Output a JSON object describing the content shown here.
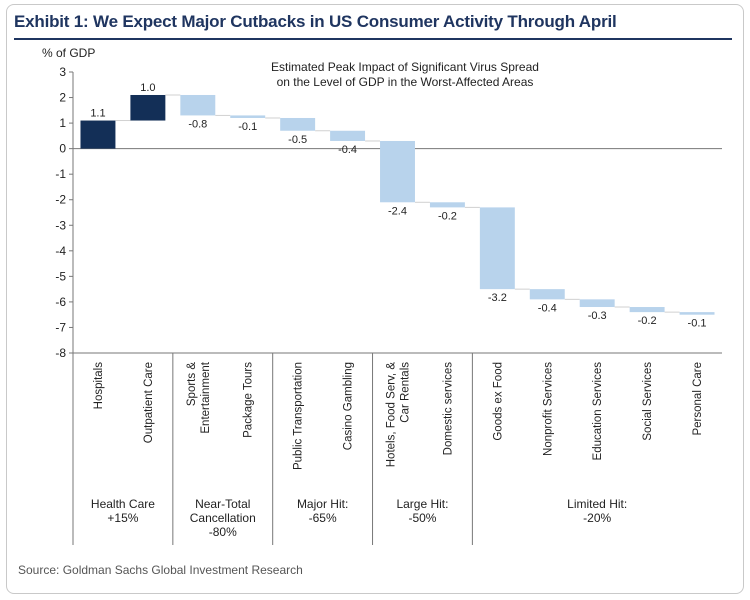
{
  "title": "Exhibit 1: We Expect Major Cutbacks in US Consumer Activity Through April",
  "source": "Source: Goldman Sachs Global Investment Research",
  "colors": {
    "health": "#132f57",
    "other": "#b8d3ec",
    "axis": "#777777",
    "title": "#1f3560"
  },
  "chart_data": {
    "type": "bar",
    "subtype": "waterfall",
    "title": "Estimated Peak Impact of Significant Virus Spread on the Level of GDP in the Worst-Affected Areas",
    "title_lines": [
      "Estimated Peak Impact of Significant Virus Spread",
      "on the Level of GDP in the Worst-Affected Areas"
    ],
    "ylabel": "% of GDP",
    "ylim": [
      -8,
      3
    ],
    "yticks": [
      3,
      2,
      1,
      0,
      -1,
      -2,
      -3,
      -4,
      -5,
      -6,
      -7,
      -8
    ],
    "categories": [
      "Hospitals",
      "Outpatient Care",
      "Sports & Entertainment",
      "Package Tours",
      "Public Transportation",
      "Casino Gambling",
      "Hotels, Food Serv, & Car Rentals",
      "Domestic services",
      "Goods ex Food",
      "Nonprofit Services",
      "Education Services",
      "Social Services",
      "Personal Care"
    ],
    "category_lines": [
      [
        "Hospitals"
      ],
      [
        "Outpatient Care"
      ],
      [
        "Sports &",
        "Entertainment"
      ],
      [
        "Package Tours"
      ],
      [
        "Public Transportation"
      ],
      [
        "Casino Gambling"
      ],
      [
        "Hotels, Food Serv, &",
        "Car Rentals"
      ],
      [
        "Domestic services"
      ],
      [
        "Goods ex Food"
      ],
      [
        "Nonprofit Services"
      ],
      [
        "Education Services"
      ],
      [
        "Social Services"
      ],
      [
        "Personal Care"
      ]
    ],
    "values": [
      1.1,
      1.0,
      -0.8,
      -0.1,
      -0.5,
      -0.4,
      -2.4,
      -0.2,
      -3.2,
      -0.4,
      -0.3,
      -0.2,
      -0.1
    ],
    "value_labels": [
      "1.1",
      "1.0",
      "-0.8",
      "-0.1",
      "-0.5",
      "-0.4",
      "-2.4",
      "-0.2",
      "-3.2",
      "-0.4",
      "-0.3",
      "-0.2",
      "-0.1"
    ],
    "groups": [
      {
        "lines": [
          "Health Care",
          "+15%"
        ],
        "start": 0,
        "end": 1
      },
      {
        "lines": [
          "Near-Total",
          "Cancellation",
          "-80%"
        ],
        "start": 2,
        "end": 3
      },
      {
        "lines": [
          "Major Hit:",
          "-65%"
        ],
        "start": 4,
        "end": 5
      },
      {
        "lines": [
          "Large Hit:",
          "-50%"
        ],
        "start": 6,
        "end": 7
      },
      {
        "lines": [
          "Limited Hit:",
          "-20%"
        ],
        "start": 8,
        "end": 12
      }
    ],
    "grid": false,
    "legend": "none"
  }
}
